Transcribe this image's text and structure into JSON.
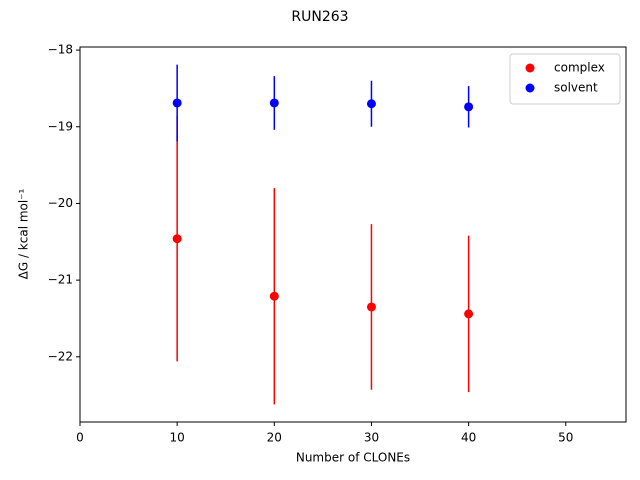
{
  "chart_data": {
    "type": "errorbar-scatter",
    "title": "RUN263",
    "xlabel": "Number of CLONEs",
    "ylabel": "ΔG / kcal mol⁻¹",
    "xlim": [
      0,
      56.2
    ],
    "xticks": [
      0,
      10,
      20,
      30,
      40,
      50
    ],
    "ylim": [
      -22.85,
      -17.96
    ],
    "yticks": [
      {
        "value": -18,
        "label": "−18"
      },
      {
        "value": -19,
        "label": "−19"
      },
      {
        "value": -20,
        "label": "−20"
      },
      {
        "value": -21,
        "label": "−21"
      },
      {
        "value": -22,
        "label": "−22"
      }
    ],
    "legend": "upper right",
    "series": [
      {
        "name": "complex",
        "color": "#ff0000",
        "x": [
          10,
          20,
          30,
          40
        ],
        "values": [
          -20.46,
          -21.21,
          -21.35,
          -21.44
        ],
        "errors": [
          1.6,
          1.41,
          1.08,
          1.02
        ]
      },
      {
        "name": "solvent",
        "color": "#0000ff",
        "x": [
          10,
          20,
          30,
          40
        ],
        "values": [
          -18.69,
          -18.69,
          -18.7,
          -18.74
        ],
        "errors": [
          0.5,
          0.35,
          0.3,
          0.27
        ]
      }
    ]
  }
}
